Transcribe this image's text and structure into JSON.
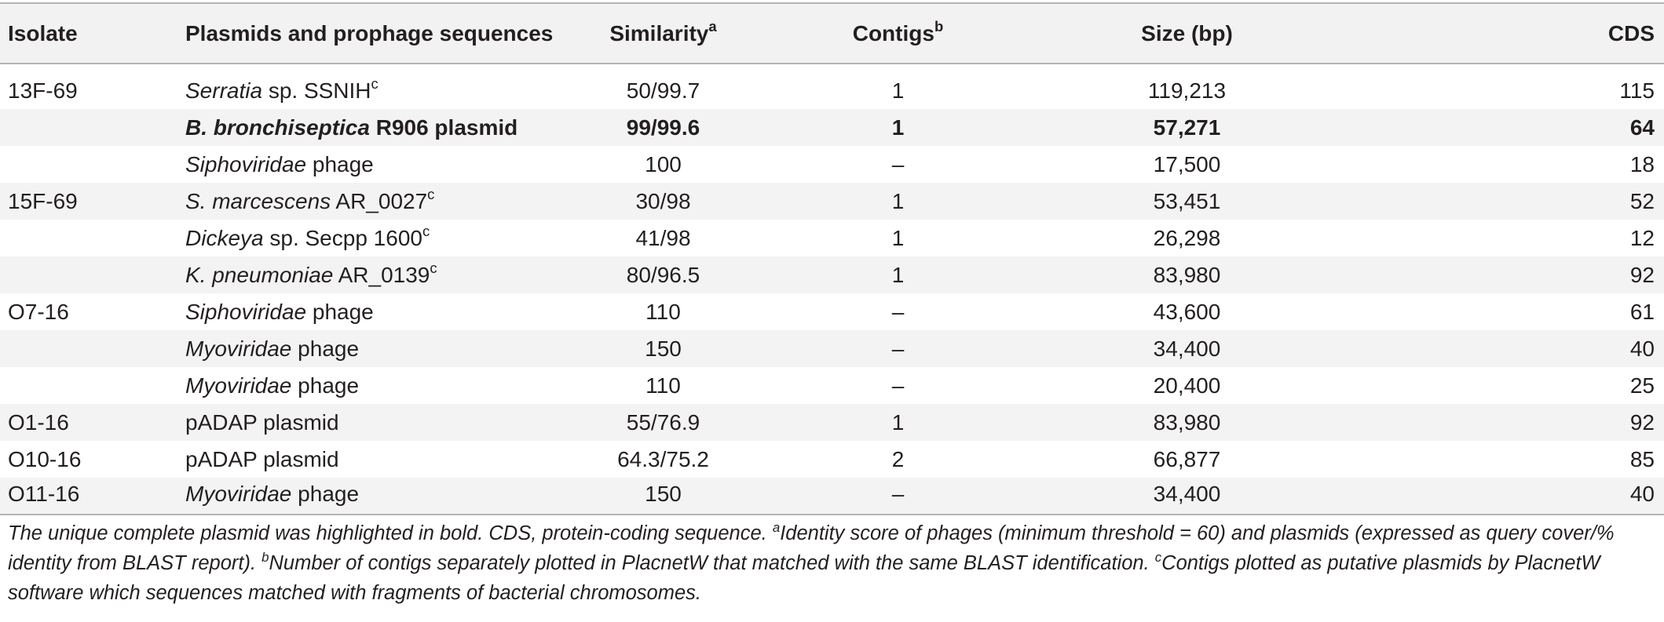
{
  "table": {
    "headers": {
      "isolate": "Isolate",
      "sequences": "Plasmids and prophage sequences",
      "similarity": "Similarity",
      "similarity_note": "a",
      "contigs": "Contigs",
      "contigs_note": "b",
      "size": "Size (bp)",
      "cds": "CDS"
    },
    "rows": [
      {
        "isolate": "13F-69",
        "seq_italic": "Serratia",
        "seq_rest": " sp. SSNIH",
        "seq_note": "c",
        "similarity": "50/99.7",
        "contigs": "1",
        "size": "119,213",
        "cds": "115"
      },
      {
        "isolate": "",
        "seq_italic": "B. bronchiseptica",
        "seq_rest": " R906 plasmid",
        "seq_note": "",
        "similarity": "99/99.6",
        "contigs": "1",
        "size": "57,271",
        "cds": "64"
      },
      {
        "isolate": "",
        "seq_italic": "Siphoviridae",
        "seq_rest": " phage",
        "seq_note": "",
        "similarity": "100",
        "contigs": "–",
        "size": "17,500",
        "cds": "18"
      },
      {
        "isolate": "15F-69",
        "seq_italic": "S. marcescens",
        "seq_rest": " AR_0027",
        "seq_note": "c",
        "similarity": "30/98",
        "contigs": "1",
        "size": "53,451",
        "cds": "52"
      },
      {
        "isolate": "",
        "seq_italic": "Dickeya",
        "seq_rest": " sp. Secpp 1600",
        "seq_note": "c",
        "similarity": "41/98",
        "contigs": "1",
        "size": "26,298",
        "cds": "12"
      },
      {
        "isolate": "",
        "seq_italic": "K. pneumoniae",
        "seq_rest": " AR_0139",
        "seq_note": "c",
        "similarity": "80/96.5",
        "contigs": "1",
        "size": "83,980",
        "cds": "92"
      },
      {
        "isolate": "O7-16",
        "seq_italic": "Siphoviridae",
        "seq_rest": " phage",
        "seq_note": "",
        "similarity": "110",
        "contigs": "–",
        "size": "43,600",
        "cds": "61"
      },
      {
        "isolate": "",
        "seq_italic": "Myoviridae",
        "seq_rest": " phage",
        "seq_note": "",
        "similarity": "150",
        "contigs": "–",
        "size": "34,400",
        "cds": "40"
      },
      {
        "isolate": "",
        "seq_italic": "Myoviridae",
        "seq_rest": " phage",
        "seq_note": "",
        "similarity": "110",
        "contigs": "–",
        "size": "20,400",
        "cds": "25"
      },
      {
        "isolate": "O1-16",
        "seq_italic": "",
        "seq_rest": "pADAP plasmid",
        "seq_note": "",
        "similarity": "55/76.9",
        "contigs": "1",
        "size": "83,980",
        "cds": "92"
      },
      {
        "isolate": "O10-16",
        "seq_italic": "",
        "seq_rest": "pADAP plasmid",
        "seq_note": "",
        "similarity": "64.3/75.2",
        "contigs": "2",
        "size": "66,877",
        "cds": "85"
      },
      {
        "isolate": "O11-16",
        "seq_italic": "Myoviridae",
        "seq_rest": " phage",
        "seq_note": "",
        "similarity": "150",
        "contigs": "–",
        "size": "34,400",
        "cds": "40"
      }
    ],
    "bold_row_index": 1
  },
  "footnote": {
    "main": "The unique complete plasmid was highlighted in bold. CDS, protein-coding sequence.",
    "a_mark": "a",
    "a_text": "Identity score of phages (minimum threshold = 60) and plasmids (expressed as query cover/% identity from BLAST report).",
    "b_mark": "b",
    "b_text": "Number of contigs separately plotted in PlacnetW that matched with the same BLAST identification.",
    "c_mark": "c",
    "c_text": "Contigs plotted as putative plasmids by PlacnetW software which sequences matched with fragments of bacterial chromosomes."
  }
}
